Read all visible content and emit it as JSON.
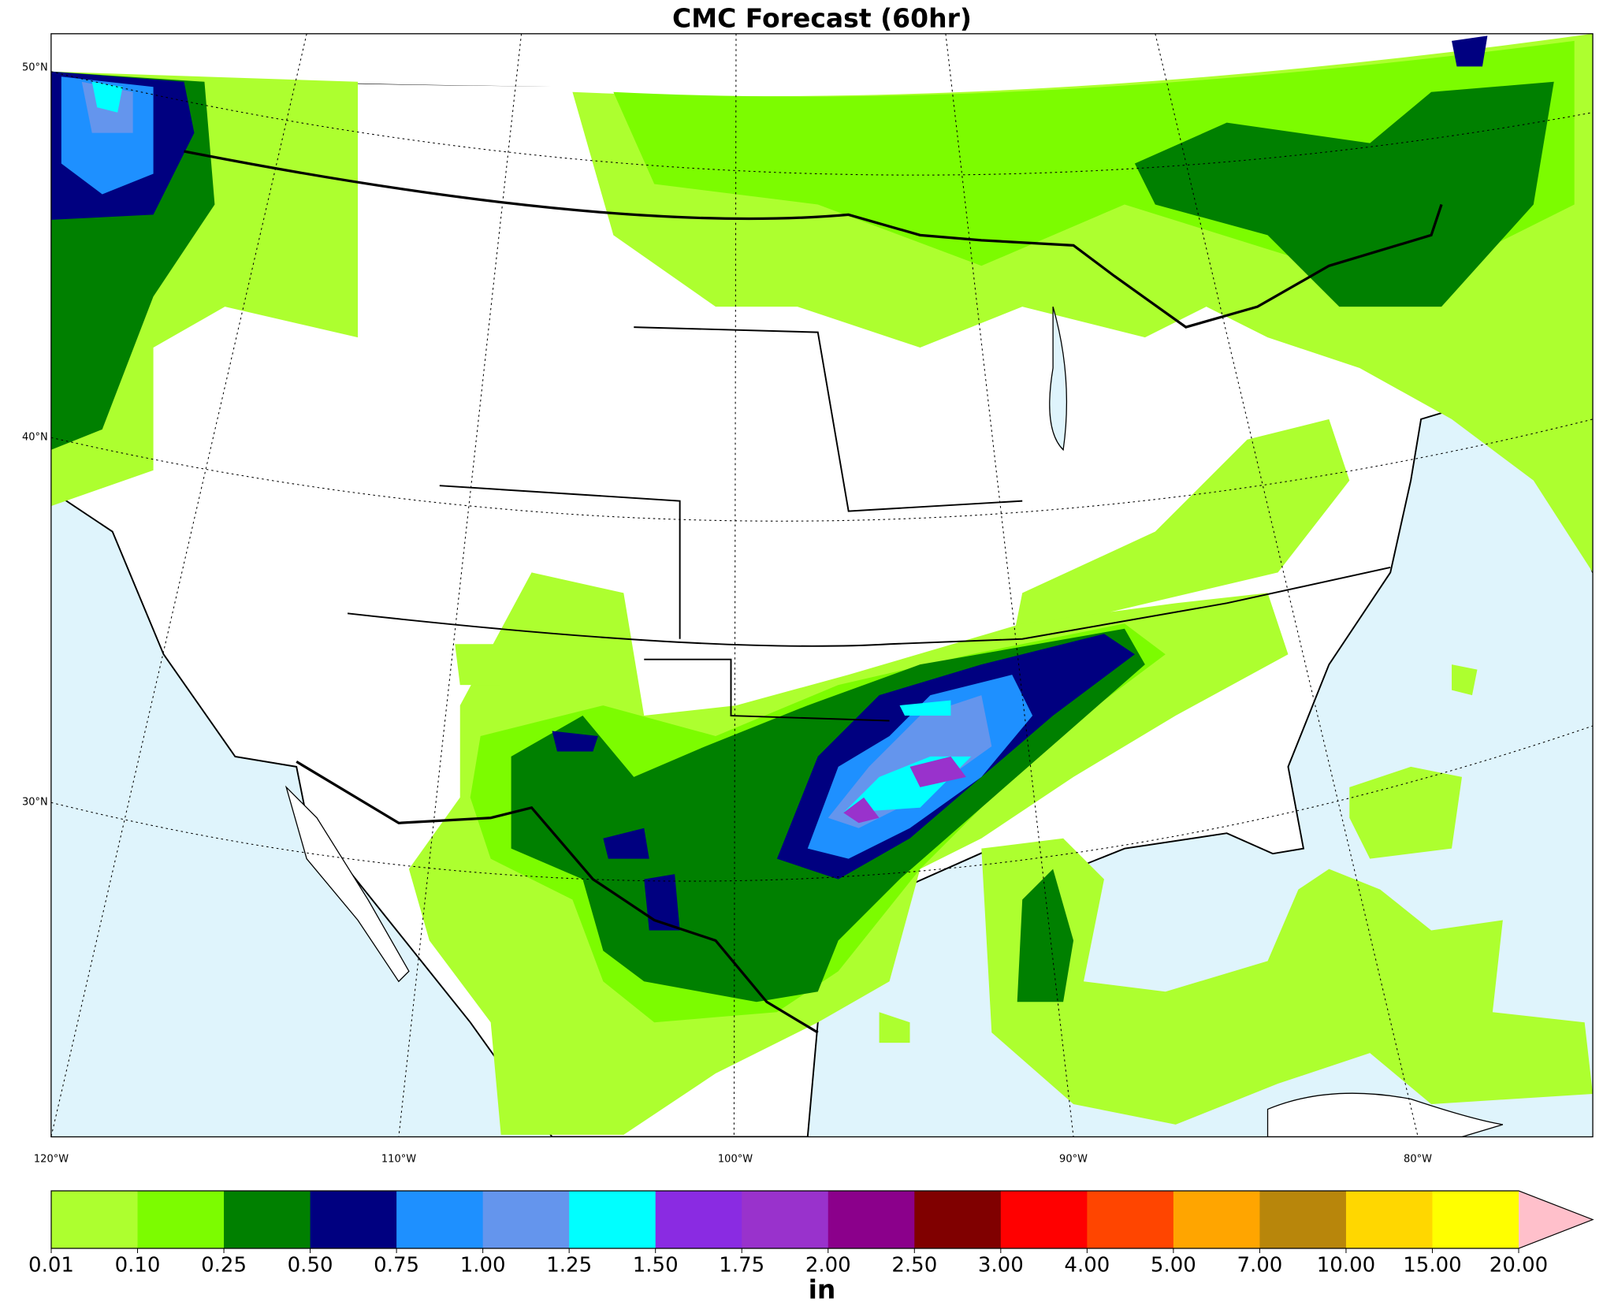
{
  "title": "CMC Forecast (60hr)",
  "latitude_labels": [
    "50°N",
    "40°N",
    "30°N"
  ],
  "longitude_labels": [
    "120°W",
    "110°W",
    "100°W",
    "90°W",
    "80°W"
  ],
  "colorbar": {
    "levels": [
      "0.01",
      "0.10",
      "0.25",
      "0.50",
      "0.75",
      "1.00",
      "1.25",
      "1.50",
      "1.75",
      "2.00",
      "2.50",
      "3.00",
      "4.00",
      "5.00",
      "7.00",
      "10.00",
      "15.00",
      "20.00"
    ],
    "colors": [
      "#adff2f",
      "#7cfc00",
      "#008000",
      "#000080",
      "#1e90ff",
      "#6495ed",
      "#00ffff",
      "#8a2be2",
      "#9932cc",
      "#8b008b",
      "#800000",
      "#ff0000",
      "#ff4500",
      "#ffa500",
      "#b8860b",
      "#ffd700",
      "#ffff00"
    ],
    "extend_color": "#ffc0cb",
    "unit": "in"
  }
}
